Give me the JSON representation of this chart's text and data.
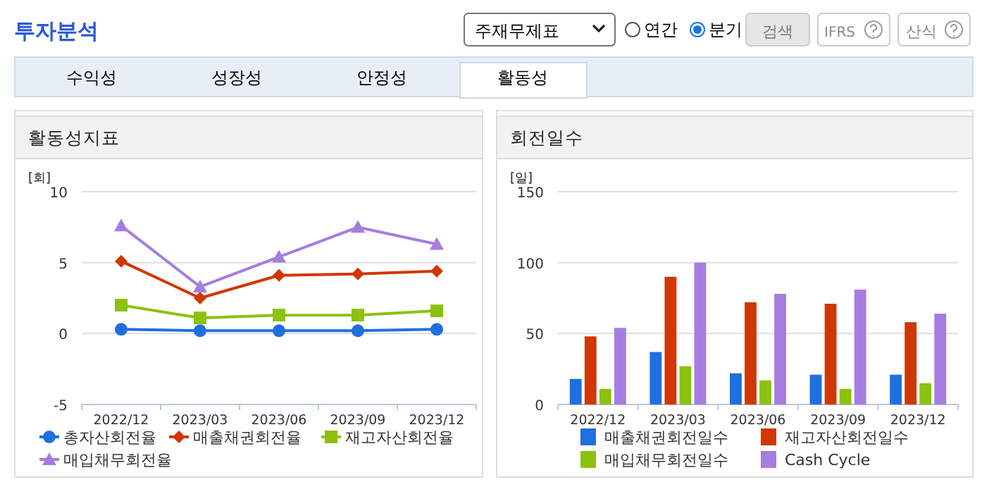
{
  "chart_data": [
    {
      "type": "other",
      "title": "투자분석",
      "annotations": [
        "주재무제표",
        "연간",
        "분기",
        "검색",
        "IFRS",
        "산식",
        "수익성",
        "성장성",
        "안정성",
        "활동성"
      ]
    },
    {
      "type": "line",
      "title": "활동성지표",
      "ylabel": "[회]",
      "categories": [
        "2022/12",
        "2023/03",
        "2023/06",
        "2023/09",
        "2023/12"
      ],
      "ylim": [
        -5,
        10
      ],
      "yticks": [
        -5,
        0,
        5,
        10
      ],
      "grid": "y",
      "legend": "bottom",
      "series": [
        {
          "name": "총자산회전율",
          "color": "#1f6fdf",
          "marker": "circle",
          "values": [
            0.3,
            0.2,
            0.2,
            0.2,
            0.3
          ]
        },
        {
          "name": "매출채권회전율",
          "color": "#d23600",
          "marker": "diamond",
          "values": [
            5.1,
            2.5,
            4.1,
            4.2,
            4.4
          ]
        },
        {
          "name": "재고자산회전율",
          "color": "#8dc10f",
          "marker": "square",
          "values": [
            2.0,
            1.1,
            1.3,
            1.3,
            1.6
          ]
        },
        {
          "name": "매입채무회전율",
          "color": "#a57de0",
          "marker": "triangle",
          "values": [
            7.6,
            3.3,
            5.4,
            7.5,
            6.3
          ]
        }
      ]
    },
    {
      "type": "bar",
      "title": "회전일수",
      "ylabel": "[일]",
      "categories": [
        "2022/12",
        "2023/03",
        "2023/06",
        "2023/09",
        "2023/12"
      ],
      "ylim": [
        0,
        150
      ],
      "yticks": [
        0,
        50,
        100,
        150
      ],
      "grid": "y",
      "legend": "bottom",
      "series": [
        {
          "name": "매출채권회전일수",
          "color": "#1f6fdf",
          "values": [
            18,
            37,
            22,
            21,
            21
          ]
        },
        {
          "name": "재고자산회전일수",
          "color": "#d23600",
          "values": [
            48,
            90,
            72,
            71,
            58
          ]
        },
        {
          "name": "매입채무회전일수",
          "color": "#8dc10f",
          "values": [
            11,
            27,
            17,
            11,
            15
          ]
        },
        {
          "name": "Cash Cycle",
          "color": "#a57de0",
          "values": [
            54,
            100,
            78,
            81,
            64
          ]
        }
      ]
    }
  ]
}
